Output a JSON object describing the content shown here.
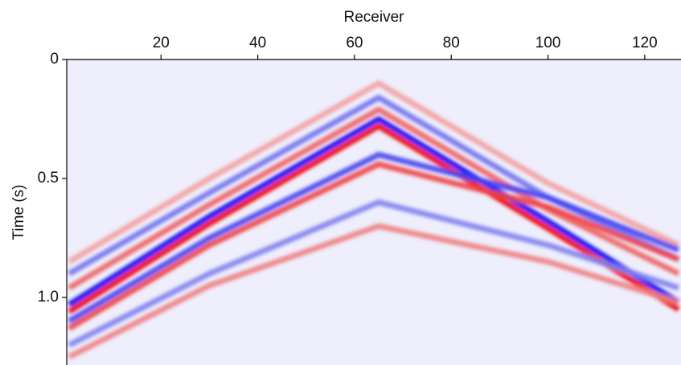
{
  "chart_data": {
    "type": "line",
    "x_label": "Receiver",
    "y_label": "Time (s)",
    "x_axis_position": "top",
    "y_inverted": true,
    "background": "#eeeefc",
    "xlim": [
      0.5,
      127.5
    ],
    "xticks": [
      20,
      40,
      60,
      80,
      100,
      120
    ],
    "ylim": [
      0,
      1.284
    ],
    "yticks": [
      0,
      0.5,
      {
        "value": 1,
        "label": "1.0"
      }
    ],
    "x": [
      1,
      30,
      65,
      100,
      127
    ],
    "series": [
      {
        "color": "#f4a0a0",
        "values": [
          0.85,
          0.5,
          0.1,
          0.52,
          0.78
        ]
      },
      {
        "color": "#7070f0",
        "values": [
          0.9,
          0.56,
          0.16,
          0.58,
          0.84
        ]
      },
      {
        "color": "#f06060",
        "values": [
          0.96,
          0.61,
          0.21,
          0.63,
          0.9
        ]
      },
      {
        "color": "#0000f0",
        "values": [
          1.03,
          0.66,
          0.25,
          0.68,
          1.02
        ]
      },
      {
        "color": "#f00000",
        "values": [
          1.06,
          0.69,
          0.28,
          0.71,
          1.05
        ]
      },
      {
        "color": "#4040f0",
        "values": [
          1.1,
          0.75,
          0.4,
          0.58,
          0.8
        ]
      },
      {
        "color": "#f04040",
        "values": [
          1.13,
          0.78,
          0.44,
          0.62,
          0.84
        ]
      },
      {
        "color": "#8080f0",
        "values": [
          1.2,
          0.9,
          0.6,
          0.78,
          0.96
        ]
      },
      {
        "color": "#f08080",
        "values": [
          1.25,
          0.95,
          0.7,
          0.85,
          1.02
        ]
      }
    ]
  }
}
